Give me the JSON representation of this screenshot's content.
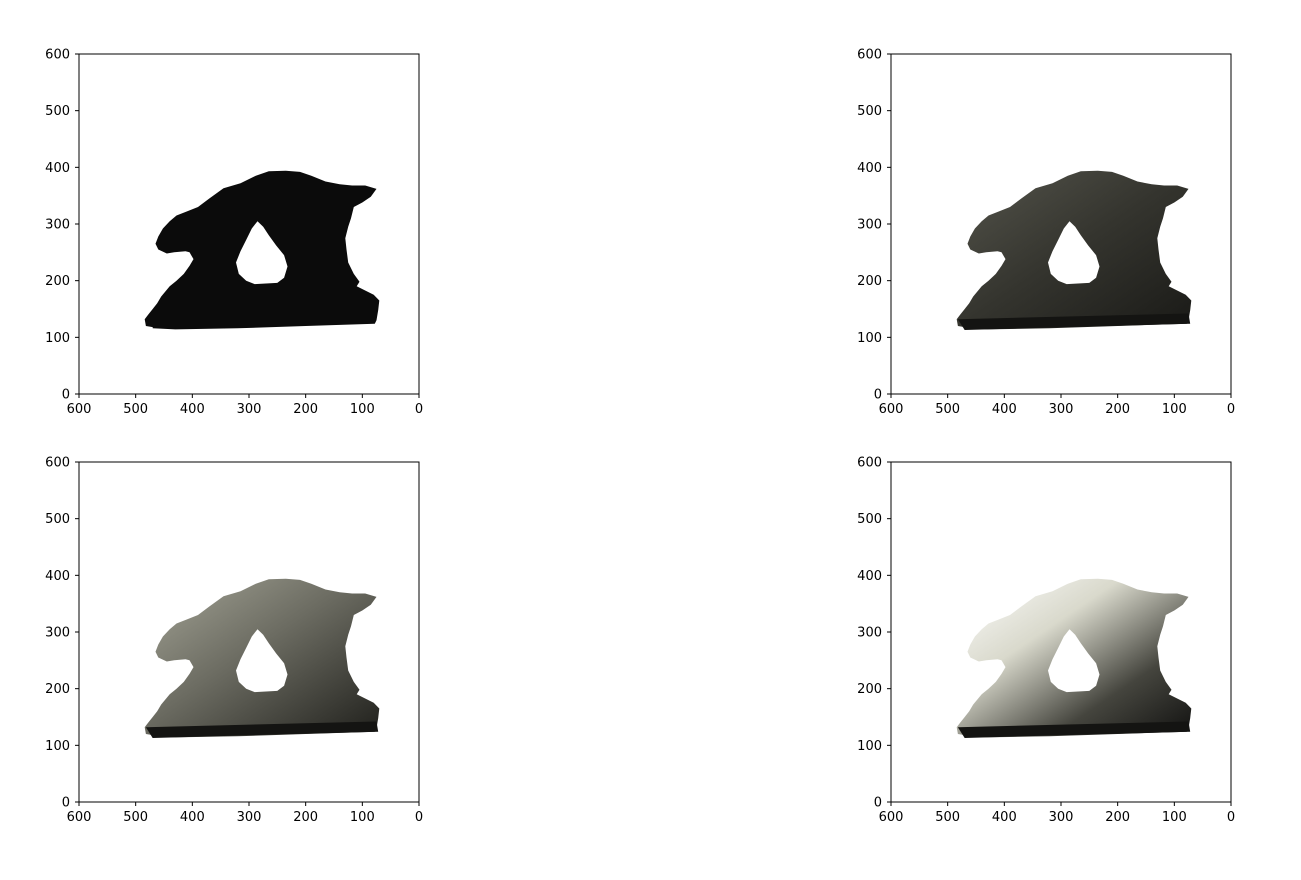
{
  "chart_data": [
    {
      "type": "image",
      "title": "",
      "xlabel": "",
      "ylabel": "",
      "xlim": [
        600,
        0
      ],
      "ylim": [
        0,
        600
      ],
      "xticks": [
        "600",
        "500",
        "400",
        "300",
        "200",
        "100",
        "0"
      ],
      "yticks": [
        "0",
        "100",
        "200",
        "300",
        "400",
        "500",
        "600"
      ],
      "image": {
        "subject": "dog-statue-silhouette",
        "fill": "#0b0b0b",
        "shading": "none"
      }
    },
    {
      "type": "image",
      "title": "",
      "xlabel": "",
      "ylabel": "",
      "xlim": [
        600,
        0
      ],
      "ylim": [
        0,
        600
      ],
      "xticks": [
        "600",
        "500",
        "400",
        "300",
        "200",
        "100",
        "0"
      ],
      "yticks": [
        "0",
        "100",
        "200",
        "300",
        "400",
        "500",
        "600"
      ],
      "image": {
        "subject": "dog-statue-rendering",
        "fill": "#3f3f38",
        "shading": "dim"
      }
    },
    {
      "type": "image",
      "title": "",
      "xlabel": "",
      "ylabel": "",
      "xlim": [
        600,
        0
      ],
      "ylim": [
        0,
        600
      ],
      "xticks": [
        "600",
        "500",
        "400",
        "300",
        "200",
        "100",
        "0"
      ],
      "yticks": [
        "0",
        "100",
        "200",
        "300",
        "400",
        "500",
        "600"
      ],
      "image": {
        "subject": "dog-statue-rendering",
        "fill": "#7d7d72",
        "shading": "medium"
      }
    },
    {
      "type": "image",
      "title": "",
      "xlabel": "",
      "ylabel": "",
      "xlim": [
        600,
        0
      ],
      "ylim": [
        0,
        600
      ],
      "xticks": [
        "600",
        "500",
        "400",
        "300",
        "200",
        "100",
        "0"
      ],
      "yticks": [
        "0",
        "100",
        "200",
        "300",
        "400",
        "500",
        "600"
      ],
      "image": {
        "subject": "dog-statue-rendering",
        "fill": "#cfcfc3",
        "shading": "bright"
      }
    }
  ]
}
